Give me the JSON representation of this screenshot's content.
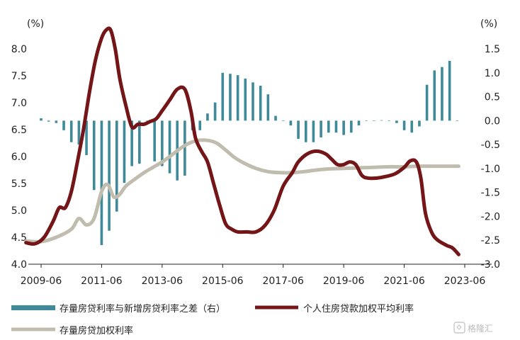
{
  "chart_data": {
    "type": "bar+line",
    "left_axis_unit": "(%)",
    "right_axis_unit": "(%)",
    "ylim_left": [
      4.0,
      8.0
    ],
    "ylim_right": [
      -3.0,
      1.5
    ],
    "left_ticks": [
      "4.0",
      "4.5",
      "5.0",
      "5.5",
      "6.0",
      "6.5",
      "7.0",
      "7.5",
      "8.0"
    ],
    "right_ticks": [
      "1.5",
      "1.0",
      "0.5",
      "0.0",
      "-0.5",
      "-1.0",
      "-1.5",
      "-2.0",
      "-2.5",
      "-3.0"
    ],
    "x_ticks": [
      "2009-06",
      "2011-06",
      "2013-06",
      "2015-06",
      "2017-06",
      "2019-06",
      "2021-06",
      "2023-06"
    ],
    "series": [
      {
        "name": "存量房贷利率与新增房贷利率之差（右）",
        "type": "bar",
        "axis": "right",
        "color": "#3e8a99",
        "x": [
          2009.5,
          2009.75,
          2010.0,
          2010.25,
          2010.5,
          2010.75,
          2011.0,
          2011.25,
          2011.5,
          2011.75,
          2012.0,
          2012.25,
          2012.5,
          2012.75,
          2013.0,
          2013.25,
          2013.5,
          2013.75,
          2014.0,
          2014.25,
          2014.5,
          2014.75,
          2015.0,
          2015.25,
          2015.5,
          2015.75,
          2016.0,
          2016.25,
          2016.5,
          2016.75,
          2017.0,
          2017.25,
          2017.5,
          2017.75,
          2018.0,
          2018.25,
          2018.5,
          2018.75,
          2019.0,
          2019.25,
          2019.5,
          2019.75,
          2020.0,
          2020.25,
          2020.5,
          2020.75,
          2021.0,
          2021.25,
          2021.5,
          2021.75,
          2022.0,
          2022.25,
          2022.5,
          2022.75,
          2023.0,
          2023.25
        ],
        "values": [
          0.05,
          -0.02,
          -0.05,
          -0.2,
          -0.45,
          -0.5,
          -0.72,
          -1.45,
          -2.6,
          -2.3,
          -1.9,
          -1.3,
          -0.95,
          -0.9,
          0.0,
          -0.85,
          -0.95,
          -1.1,
          -1.25,
          -1.15,
          -0.2,
          -0.2,
          0.15,
          0.38,
          1.0,
          0.98,
          0.95,
          0.88,
          0.8,
          0.73,
          0.55,
          0.1,
          0.0,
          -0.1,
          -0.38,
          -0.45,
          -0.45,
          -0.35,
          -0.25,
          -0.25,
          -0.3,
          -0.25,
          -0.1,
          0.0,
          0.0,
          0.01,
          0.0,
          -0.05,
          -0.2,
          -0.25,
          -0.12,
          0.75,
          1.05,
          1.12,
          1.25,
          0.0
        ]
      },
      {
        "name": "个人住房贷款加权平均利率",
        "type": "line",
        "axis": "left",
        "color": "#741518",
        "x": [
          2009.0,
          2009.3,
          2009.6,
          2009.9,
          2010.1,
          2010.3,
          2010.5,
          2010.7,
          2010.9,
          2011.1,
          2011.3,
          2011.5,
          2011.65,
          2011.8,
          2011.95,
          2012.1,
          2012.3,
          2012.5,
          2012.7,
          2012.9,
          2013.1,
          2013.3,
          2013.5,
          2013.75,
          2014.0,
          2014.25,
          2014.45,
          2014.6,
          2014.8,
          2015.0,
          2015.2,
          2015.4,
          2015.6,
          2015.8,
          2016.0,
          2016.3,
          2016.6,
          2016.9,
          2017.2,
          2017.5,
          2017.8,
          2018.0,
          2018.3,
          2018.6,
          2018.9,
          2019.1,
          2019.3,
          2019.5,
          2019.7,
          2019.9,
          2020.1,
          2020.3,
          2020.6,
          2020.9,
          2021.2,
          2021.5,
          2021.7,
          2021.9,
          2022.05,
          2022.2,
          2022.4,
          2022.6,
          2022.9,
          2023.1,
          2023.3
        ],
        "values": [
          4.4,
          4.38,
          4.5,
          4.8,
          5.05,
          5.05,
          5.35,
          5.9,
          6.5,
          7.2,
          7.8,
          8.2,
          8.35,
          8.35,
          8.0,
          7.45,
          6.95,
          6.55,
          6.6,
          6.6,
          6.65,
          6.7,
          6.85,
          7.05,
          7.25,
          7.25,
          6.85,
          6.35,
          6.1,
          5.9,
          5.5,
          5.1,
          4.75,
          4.65,
          4.6,
          4.6,
          4.6,
          4.72,
          5.0,
          5.45,
          5.7,
          5.9,
          6.05,
          6.1,
          6.05,
          5.95,
          5.85,
          5.85,
          5.9,
          5.85,
          5.65,
          5.6,
          5.6,
          5.63,
          5.68,
          5.8,
          5.92,
          5.9,
          5.6,
          4.95,
          4.6,
          4.45,
          4.35,
          4.3,
          4.18
        ]
      },
      {
        "name": "存量房贷加权利率",
        "type": "line",
        "axis": "left",
        "color": "#c0bcae",
        "x": [
          2009.0,
          2009.5,
          2010.0,
          2010.5,
          2010.75,
          2011.0,
          2011.25,
          2011.5,
          2011.7,
          2011.9,
          2012.1,
          2012.3,
          2012.6,
          2012.9,
          2013.2,
          2013.5,
          2013.8,
          2014.1,
          2014.4,
          2014.7,
          2015.0,
          2015.3,
          2015.6,
          2015.9,
          2016.2,
          2016.6,
          2017.0,
          2017.4,
          2017.8,
          2018.2,
          2018.6,
          2019.0,
          2019.5,
          2020.0,
          2020.5,
          2021.0,
          2021.5,
          2022.0,
          2022.5,
          2023.0,
          2023.3
        ],
        "values": [
          4.43,
          4.42,
          4.5,
          4.65,
          4.85,
          4.73,
          4.85,
          5.35,
          5.48,
          5.25,
          5.3,
          5.45,
          5.58,
          5.7,
          5.8,
          5.9,
          6.02,
          6.15,
          6.25,
          6.3,
          6.3,
          6.25,
          6.12,
          5.98,
          5.88,
          5.78,
          5.72,
          5.7,
          5.7,
          5.72,
          5.75,
          5.77,
          5.78,
          5.79,
          5.8,
          5.81,
          5.81,
          5.82,
          5.82,
          5.82,
          5.82
        ]
      }
    ]
  },
  "watermark": "格隆汇"
}
